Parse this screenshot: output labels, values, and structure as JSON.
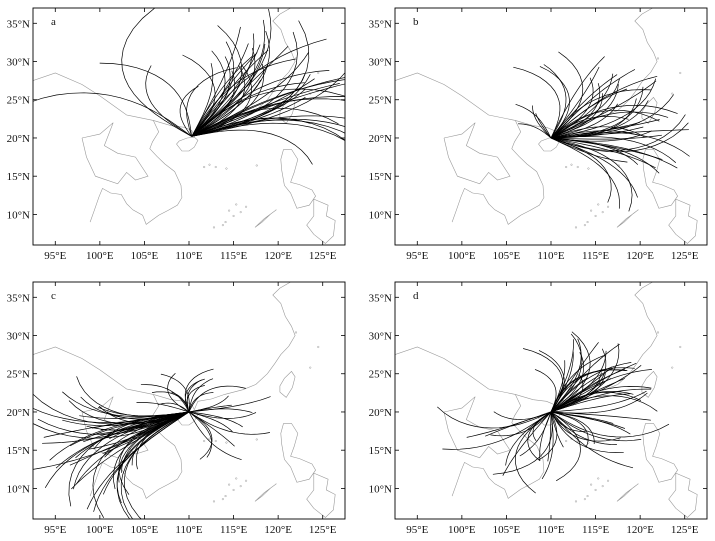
{
  "figure": {
    "panels": [
      {
        "label": "a",
        "origin": [
          110.3,
          20.2
        ]
      },
      {
        "label": "b",
        "origin": [
          110.0,
          20.0
        ]
      },
      {
        "label": "c",
        "origin": [
          110.0,
          20.0
        ]
      },
      {
        "label": "d",
        "origin": [
          110.0,
          20.0
        ]
      }
    ],
    "x_ticks": [
      95,
      100,
      105,
      110,
      115,
      120,
      125
    ],
    "y_ticks": [
      10,
      15,
      20,
      25,
      30,
      35
    ],
    "x_tick_labels": [
      "95°E",
      "100°E",
      "105°E",
      "110°E",
      "115°E",
      "120°E",
      "125°E"
    ],
    "y_tick_labels": [
      "10°N",
      "15°N",
      "20°N",
      "25°N",
      "30°N",
      "35°N"
    ],
    "lon_range": [
      92.5,
      127.5
    ],
    "lat_range": [
      6,
      37
    ],
    "colors": {
      "track": "#000000",
      "coast": "#9a9a9a",
      "frame": "#000000"
    }
  }
}
